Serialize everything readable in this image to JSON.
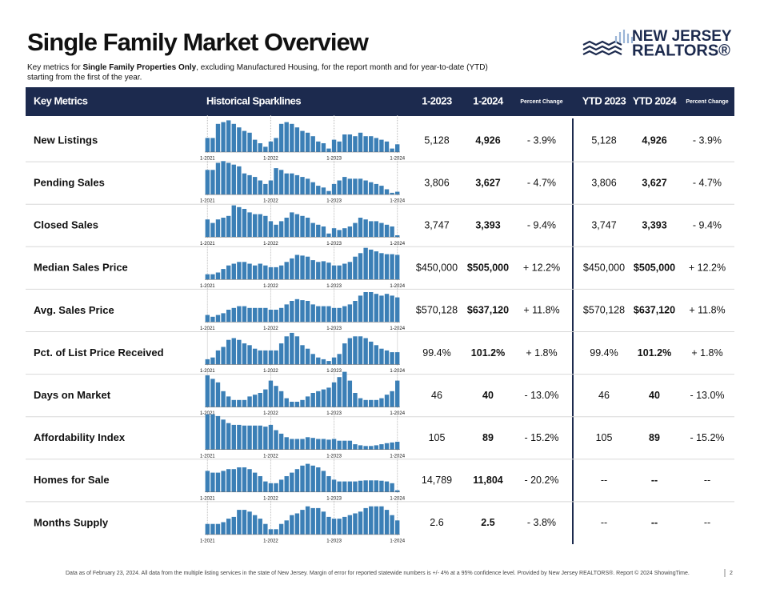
{
  "header": {
    "title": "Single Family Market Overview",
    "subtitle_start": "Key metrics for ",
    "subtitle_bold": "Single Family Properties Only",
    "subtitle_end": ", excluding Manufactured Housing, for the report month and for year-to-date (YTD)",
    "subtitle_line2": "starting from the first of the year.",
    "logo_line1": "NEW JERSEY",
    "logo_line2": "REALTORS®"
  },
  "table": {
    "columns": [
      "Key Metrics",
      "Historical Sparklines",
      "1-2023",
      "1-2024",
      "Percent Change",
      "YTD 2023",
      "YTD 2024",
      "Percent Change"
    ],
    "sparkline_labels": [
      "1-2021",
      "1-2022",
      "1-2023",
      "1-2024"
    ],
    "rows": [
      {
        "metric": "New Listings",
        "sparkline": [
          40,
          40,
          80,
          85,
          90,
          80,
          70,
          60,
          55,
          35,
          25,
          15,
          30,
          40,
          80,
          85,
          80,
          70,
          60,
          55,
          45,
          30,
          25,
          10,
          35,
          30,
          50,
          50,
          45,
          55,
          45,
          45,
          40,
          35,
          30,
          10,
          22
        ],
        "cells": [
          "5,128",
          "4,926",
          "- 3.9%",
          "5,128",
          "4,926",
          "- 3.9%"
        ]
      },
      {
        "metric": "Pending Sales",
        "sparkline": [
          70,
          70,
          90,
          95,
          90,
          85,
          80,
          60,
          55,
          50,
          40,
          30,
          40,
          75,
          70,
          60,
          60,
          55,
          50,
          45,
          35,
          25,
          20,
          10,
          30,
          40,
          50,
          45,
          45,
          45,
          40,
          35,
          30,
          25,
          15,
          5,
          8
        ],
        "cells": [
          "3,806",
          "3,627",
          "- 4.7%",
          "3,806",
          "3,627",
          "- 4.7%"
        ]
      },
      {
        "metric": "Closed Sales",
        "sparkline": [
          50,
          40,
          50,
          55,
          60,
          90,
          85,
          80,
          70,
          65,
          65,
          60,
          45,
          35,
          45,
          55,
          70,
          65,
          60,
          55,
          40,
          35,
          30,
          10,
          25,
          20,
          25,
          30,
          40,
          55,
          50,
          45,
          45,
          40,
          35,
          30,
          5
        ],
        "cells": [
          "3,747",
          "3,393",
          "- 9.4%",
          "3,747",
          "3,393",
          "- 9.4%"
        ]
      },
      {
        "metric": "Median Sales Price",
        "sparkline": [
          15,
          15,
          20,
          30,
          40,
          45,
          50,
          50,
          45,
          40,
          45,
          40,
          35,
          35,
          40,
          50,
          60,
          70,
          68,
          65,
          55,
          50,
          52,
          48,
          40,
          40,
          45,
          50,
          65,
          75,
          90,
          85,
          80,
          75,
          72,
          72,
          70
        ],
        "cells": [
          "$450,000",
          "$505,000",
          "+ 12.2%",
          "$450,000",
          "$505,000",
          "+ 12.2%"
        ]
      },
      {
        "metric": "Avg. Sales Price",
        "sparkline": [
          20,
          15,
          20,
          25,
          35,
          40,
          45,
          45,
          40,
          40,
          40,
          40,
          35,
          35,
          40,
          50,
          60,
          65,
          62,
          60,
          50,
          45,
          45,
          45,
          40,
          40,
          45,
          50,
          60,
          75,
          85,
          85,
          80,
          75,
          80,
          75,
          70
        ],
        "cells": [
          "$570,128",
          "$637,120",
          "+ 11.8%",
          "$570,128",
          "$637,120",
          "+ 11.8%"
        ]
      },
      {
        "metric": "Pct. of List Price Received",
        "sparkline": [
          15,
          20,
          40,
          50,
          70,
          75,
          70,
          60,
          55,
          45,
          40,
          40,
          40,
          40,
          60,
          80,
          90,
          80,
          55,
          45,
          30,
          20,
          15,
          10,
          20,
          30,
          60,
          75,
          80,
          80,
          75,
          65,
          55,
          45,
          40,
          35,
          35
        ],
        "cells": [
          "99.4%",
          "101.2%",
          "+ 1.8%",
          "99.4%",
          "101.2%",
          "+ 1.8%"
        ]
      },
      {
        "metric": "Days on Market",
        "sparkline": [
          90,
          80,
          70,
          45,
          30,
          20,
          20,
          20,
          30,
          35,
          40,
          50,
          75,
          60,
          45,
          25,
          15,
          15,
          20,
          30,
          40,
          45,
          50,
          55,
          70,
          85,
          100,
          75,
          40,
          25,
          20,
          20,
          20,
          25,
          35,
          45,
          75
        ],
        "cells": [
          "46",
          "40",
          "- 13.0%",
          "46",
          "40",
          "- 13.0%"
        ]
      },
      {
        "metric": "Affordability Index",
        "sparkline": [
          100,
          100,
          95,
          85,
          75,
          70,
          70,
          68,
          68,
          68,
          68,
          65,
          70,
          55,
          45,
          35,
          30,
          30,
          30,
          35,
          33,
          30,
          30,
          28,
          30,
          25,
          25,
          25,
          15,
          12,
          10,
          10,
          12,
          15,
          18,
          20,
          22
        ],
        "cells": [
          "105",
          "89",
          "- 15.2%",
          "105",
          "89",
          "- 15.2%"
        ]
      },
      {
        "metric": "Homes for Sale",
        "sparkline": [
          60,
          55,
          55,
          60,
          65,
          65,
          70,
          70,
          65,
          55,
          45,
          30,
          25,
          25,
          35,
          45,
          55,
          65,
          75,
          80,
          75,
          70,
          60,
          45,
          35,
          30,
          30,
          30,
          30,
          32,
          33,
          33,
          33,
          32,
          30,
          25,
          5
        ],
        "cells": [
          "14,789",
          "11,804",
          "- 20.2%",
          "--",
          "--",
          "--"
        ]
      },
      {
        "metric": "Months Supply",
        "sparkline": [
          30,
          30,
          30,
          35,
          45,
          50,
          70,
          70,
          65,
          55,
          45,
          30,
          15,
          15,
          30,
          40,
          55,
          60,
          70,
          80,
          75,
          75,
          65,
          50,
          45,
          45,
          50,
          55,
          60,
          65,
          75,
          80,
          80,
          80,
          70,
          55,
          40
        ],
        "cells": [
          "2.6",
          "2.5",
          "- 3.8%",
          "--",
          "--",
          "--"
        ]
      }
    ]
  },
  "footer": {
    "text": "Data as of February 23, 2024. All data from the multiple listing services in the state of New Jersey. Margin of error for reported statewide numbers is +/- 4% at a 95% confidence level. Provided by New Jersey REALTORS®. Report © 2024 ShowingTime.",
    "page": "2"
  }
}
